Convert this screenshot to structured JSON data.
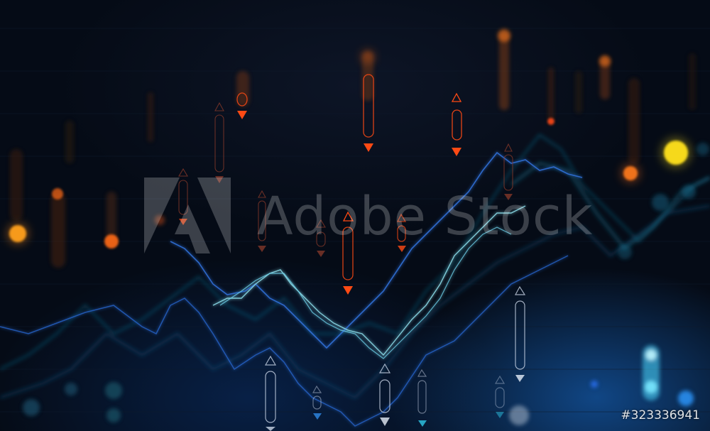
{
  "watermark": {
    "text": "Adobe Stock",
    "stock_id": "#323336941"
  },
  "colors": {
    "background": "#050b16",
    "orange_marker": "#ff4a14",
    "blue_line": "#2f6fd6",
    "cyan_line": "#8fe3f0",
    "yellow_bokeh": "#ffe11a"
  }
}
